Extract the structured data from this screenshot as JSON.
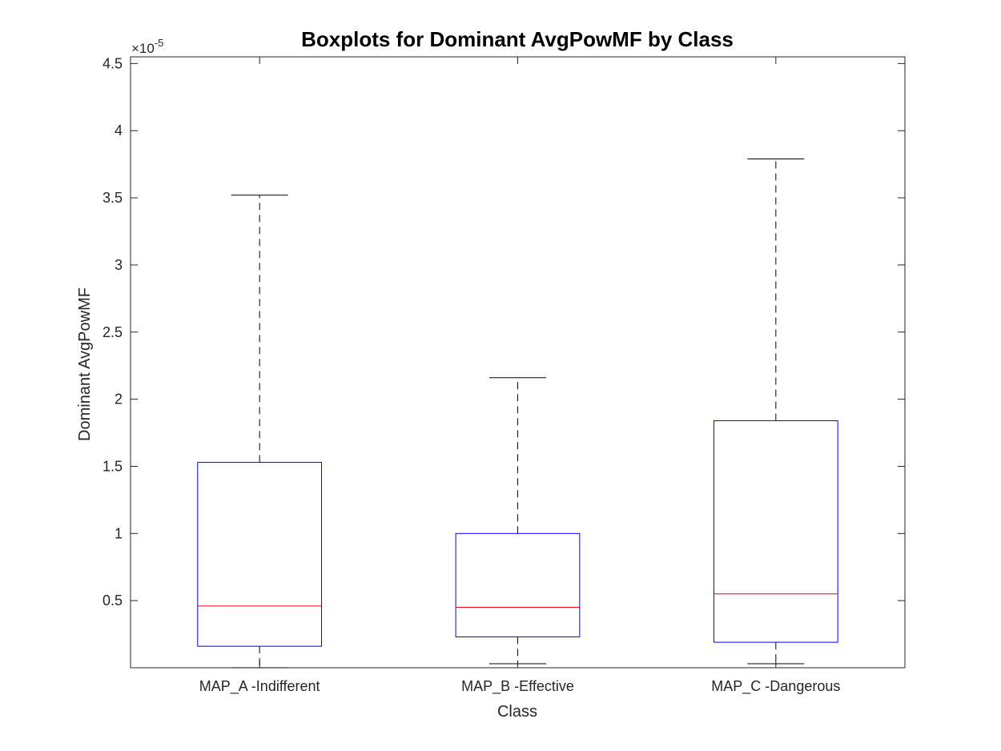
{
  "chart_data": {
    "type": "boxplot",
    "title": "Boxplots for Dominant AvgPowMF by Class",
    "xlabel": "Class",
    "ylabel": "Dominant AvgPowMF",
    "exponent_prefix": "×10",
    "exponent_power": "-5",
    "scale": 1e-05,
    "ylim": [
      0,
      4.55
    ],
    "yticks": [
      0.5,
      1,
      1.5,
      2,
      2.5,
      3,
      3.5,
      4,
      4.5
    ],
    "ytick_labels": [
      "0.5",
      "1",
      "1.5",
      "2",
      "2.5",
      "3",
      "3.5",
      "4",
      "4.5"
    ],
    "categories": [
      "MAP_A -Indifferent",
      "MAP_B -Effective",
      "MAP_C -Dangerous"
    ],
    "boxes": [
      {
        "whisker_low": 0.0,
        "q1": 0.16,
        "median": 0.46,
        "q3": 1.53,
        "whisker_high": 3.52
      },
      {
        "whisker_low": 0.03,
        "q1": 0.23,
        "median": 0.45,
        "q3": 1.0,
        "whisker_high": 2.16
      },
      {
        "whisker_low": 0.03,
        "q1": 0.19,
        "median": 0.55,
        "q3": 1.84,
        "whisker_high": 3.79
      }
    ],
    "grid": false,
    "colors": {
      "box": "#0000ff",
      "median": "#ff0000",
      "whisker": "#000000",
      "axis": "#262626"
    }
  }
}
